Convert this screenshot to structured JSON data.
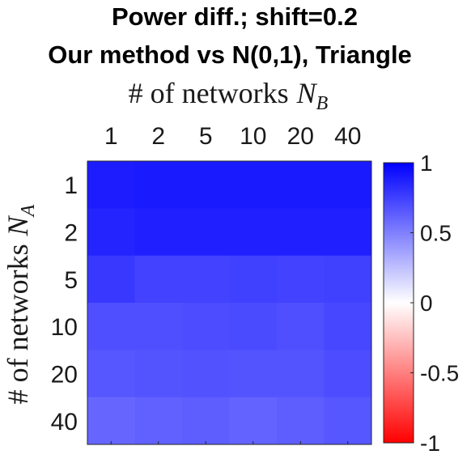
{
  "chart_data": {
    "type": "heatmap",
    "title_lines": [
      "Power diff.; shift=0.2",
      "Our method vs N(0,1), Triangle"
    ],
    "xlabel": "# of networks",
    "xlabel_var": "N",
    "xlabel_sub": "B",
    "ylabel": "# of networks",
    "ylabel_var": "N",
    "ylabel_sub": "A",
    "x_categories": [
      "1",
      "2",
      "5",
      "10",
      "20",
      "40"
    ],
    "y_categories": [
      "1",
      "2",
      "5",
      "10",
      "20",
      "40"
    ],
    "values": [
      [
        0.89,
        0.9,
        0.9,
        0.9,
        0.9,
        0.9
      ],
      [
        0.86,
        0.88,
        0.88,
        0.88,
        0.88,
        0.88
      ],
      [
        0.78,
        0.74,
        0.74,
        0.75,
        0.74,
        0.75
      ],
      [
        0.69,
        0.69,
        0.7,
        0.71,
        0.69,
        0.72
      ],
      [
        0.66,
        0.67,
        0.68,
        0.67,
        0.67,
        0.7
      ],
      [
        0.6,
        0.62,
        0.63,
        0.61,
        0.63,
        0.66
      ]
    ],
    "colorbar": {
      "range": [
        -1,
        1
      ],
      "ticks": [
        "-1",
        "-0.5",
        "0",
        "0.5",
        "1"
      ],
      "colors": {
        "low": "#ff0000",
        "mid": "#ffffff",
        "high": "#0000ff"
      }
    }
  }
}
